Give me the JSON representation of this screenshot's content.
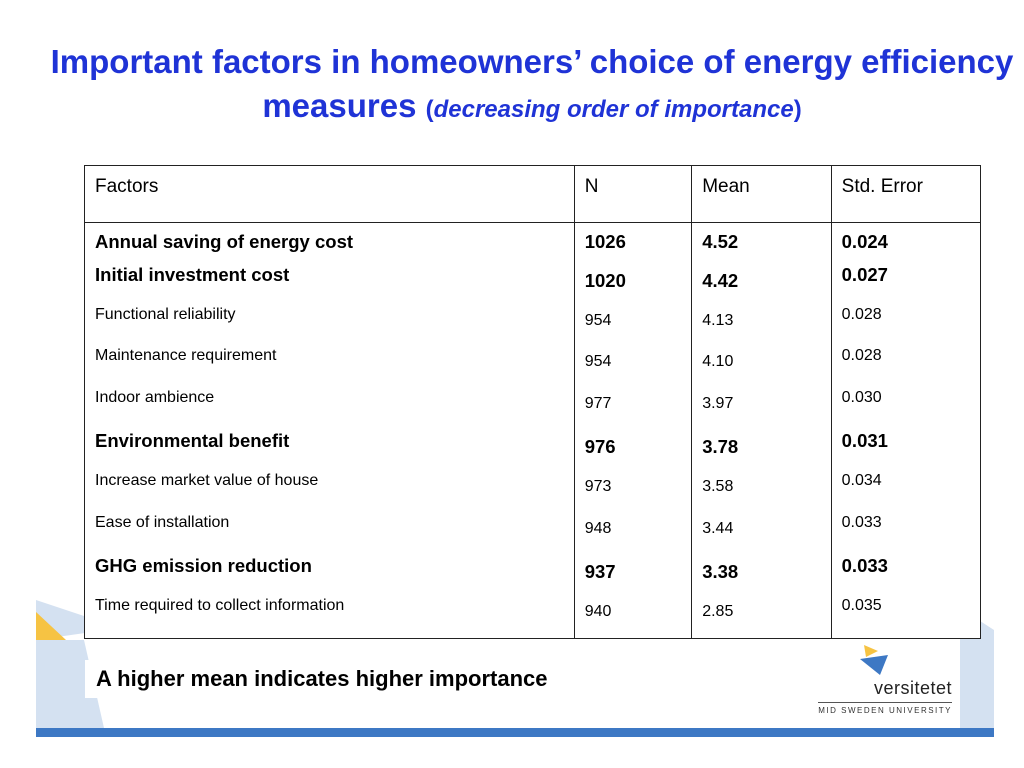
{
  "title": {
    "main": "Important factors in homeowners’ choice of energy efficiency measures",
    "open_paren": "(",
    "subtitle": "decreasing order of importance",
    "close_paren": ")"
  },
  "table": {
    "headers": [
      "Factors",
      "N",
      "Mean",
      "Std. Error"
    ],
    "rows": [
      {
        "factor": "Annual saving of energy cost",
        "n": "1026",
        "mean": "4.52",
        "se": "0.024"
      },
      {
        "factor": "Initial investment cost",
        "n": "1020",
        "mean": "4.42",
        "se": "0.027"
      },
      {
        "factor": "Functional reliability",
        "n": "954",
        "mean": "4.13",
        "se": "0.028"
      },
      {
        "factor": "Maintenance requirement",
        "n": "954",
        "mean": "4.10",
        "se": "0.028"
      },
      {
        "factor": "Indoor ambience",
        "n": "977",
        "mean": "3.97",
        "se": "0.030"
      },
      {
        "factor": "Environmental benefit",
        "n": "976",
        "mean": "3.78",
        "se": "0.031"
      },
      {
        "factor": "Increase market value of house",
        "n": "973",
        "mean": "3.58",
        "se": "0.034"
      },
      {
        "factor": "Ease of installation",
        "n": "948",
        "mean": "3.44",
        "se": "0.033"
      },
      {
        "factor": "GHG emission reduction",
        "n": "937",
        "mean": "3.38",
        "se": "0.033"
      },
      {
        "factor": "Time required to collect information",
        "n": "940",
        "mean": "2.85",
        "se": "0.035"
      }
    ]
  },
  "footnote": "A higher mean indicates higher importance",
  "logo": {
    "word": "versitetet",
    "subline": "MID SWEDEN UNIVERSITY"
  },
  "colors": {
    "title": "#1f33d6",
    "yellow": "#f6c343",
    "blue": "#3d78c4",
    "light_blue": "#d4e1f1"
  }
}
